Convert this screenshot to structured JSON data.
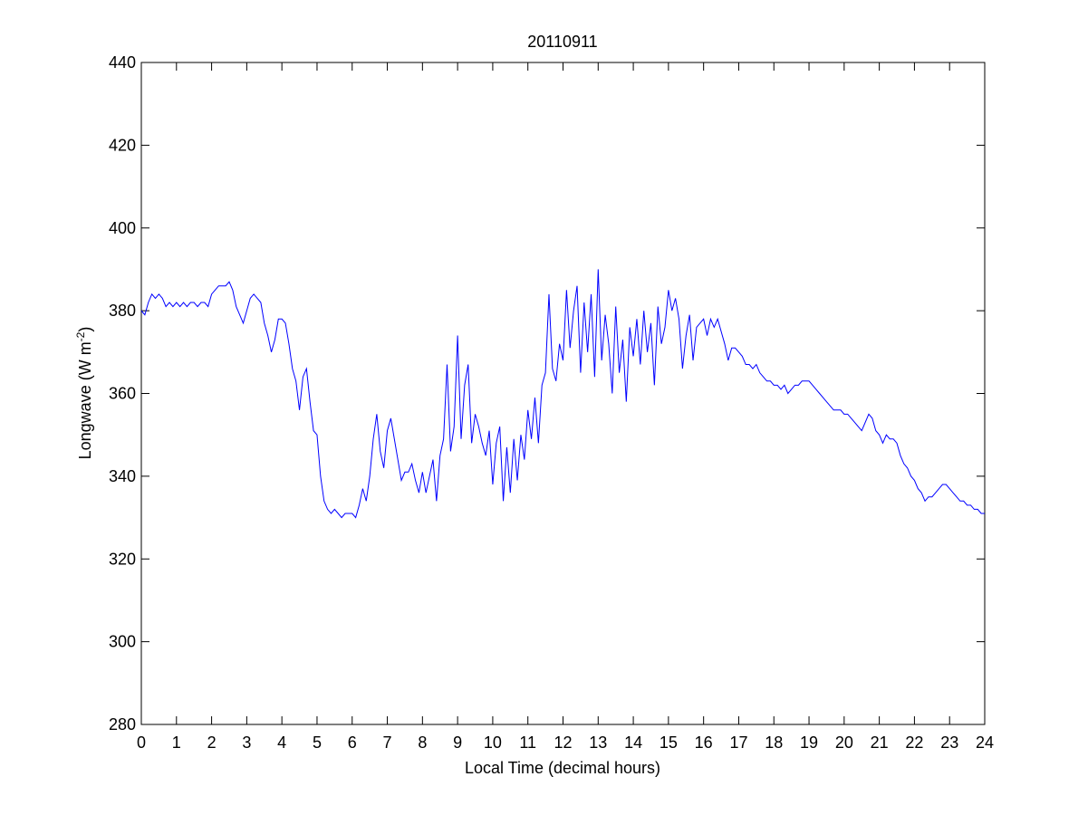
{
  "chart_data": {
    "type": "line",
    "title": "20110911",
    "xlabel": "Local Time (decimal hours)",
    "ylabel": {
      "text": "Longwave (W m",
      "superscript": "-2",
      "suffix": ")"
    },
    "xlim": [
      0,
      24
    ],
    "xticks": [
      0,
      1,
      2,
      3,
      4,
      5,
      6,
      7,
      8,
      9,
      10,
      11,
      12,
      13,
      14,
      15,
      16,
      17,
      18,
      19,
      20,
      21,
      22,
      23,
      24
    ],
    "ylim": [
      280,
      440
    ],
    "yticks": [
      280,
      300,
      320,
      340,
      360,
      380,
      400,
      420,
      440
    ],
    "grid": false,
    "series": [
      {
        "color": "#0000ff",
        "x": [
          0,
          0.1,
          0.2,
          0.3,
          0.4,
          0.5,
          0.6,
          0.7,
          0.8,
          0.9,
          1,
          1.1,
          1.2,
          1.3,
          1.4,
          1.5,
          1.6,
          1.7,
          1.8,
          1.9,
          2,
          2.1,
          2.2,
          2.3,
          2.4,
          2.5,
          2.6,
          2.7,
          2.8,
          2.9,
          3,
          3.1,
          3.2,
          3.3,
          3.4,
          3.5,
          3.6,
          3.7,
          3.8,
          3.9,
          4,
          4.1,
          4.2,
          4.3,
          4.4,
          4.5,
          4.6,
          4.7,
          4.8,
          4.9,
          5,
          5.1,
          5.2,
          5.3,
          5.4,
          5.5,
          5.6,
          5.7,
          5.8,
          5.9,
          6,
          6.1,
          6.2,
          6.3,
          6.4,
          6.5,
          6.6,
          6.7,
          6.8,
          6.9,
          7,
          7.1,
          7.2,
          7.3,
          7.4,
          7.5,
          7.6,
          7.7,
          7.8,
          7.9,
          8,
          8.1,
          8.2,
          8.3,
          8.4,
          8.5,
          8.6,
          8.7,
          8.8,
          8.9,
          9,
          9.1,
          9.2,
          9.3,
          9.4,
          9.5,
          9.6,
          9.7,
          9.8,
          9.9,
          10,
          10.1,
          10.2,
          10.3,
          10.4,
          10.5,
          10.6,
          10.7,
          10.8,
          10.9,
          11,
          11.1,
          11.2,
          11.3,
          11.4,
          11.5,
          11.6,
          11.7,
          11.8,
          11.9,
          12,
          12.1,
          12.2,
          12.3,
          12.4,
          12.5,
          12.6,
          12.7,
          12.8,
          12.9,
          13,
          13.1,
          13.2,
          13.3,
          13.4,
          13.5,
          13.6,
          13.7,
          13.8,
          13.9,
          14,
          14.1,
          14.2,
          14.3,
          14.4,
          14.5,
          14.6,
          14.7,
          14.8,
          14.9,
          15,
          15.1,
          15.2,
          15.3,
          15.4,
          15.5,
          15.6,
          15.7,
          15.8,
          15.9,
          16,
          16.1,
          16.2,
          16.3,
          16.4,
          16.5,
          16.6,
          16.7,
          16.8,
          16.9,
          17,
          17.1,
          17.2,
          17.3,
          17.4,
          17.5,
          17.6,
          17.7,
          17.8,
          17.9,
          18,
          18.1,
          18.2,
          18.3,
          18.4,
          18.5,
          18.6,
          18.7,
          18.8,
          18.9,
          19,
          19.1,
          19.2,
          19.3,
          19.4,
          19.5,
          19.6,
          19.7,
          19.8,
          19.9,
          20,
          20.1,
          20.2,
          20.3,
          20.4,
          20.5,
          20.6,
          20.7,
          20.8,
          20.9,
          21,
          21.1,
          21.2,
          21.3,
          21.4,
          21.5,
          21.6,
          21.7,
          21.8,
          21.9,
          22,
          22.1,
          22.2,
          22.3,
          22.4,
          22.5,
          22.6,
          22.7,
          22.8,
          22.9,
          23,
          23.1,
          23.2,
          23.3,
          23.4,
          23.5,
          23.6,
          23.7,
          23.8,
          23.9,
          24
        ],
        "values": [
          380,
          379,
          382,
          384,
          383,
          384,
          383,
          381,
          382,
          381,
          382,
          381,
          382,
          381,
          382,
          382,
          381,
          382,
          382,
          381,
          384,
          385,
          386,
          386,
          386,
          387,
          385,
          381,
          379,
          377,
          380,
          383,
          384,
          383,
          382,
          377,
          374,
          370,
          373,
          378,
          378,
          377,
          372,
          366,
          363,
          356,
          364,
          366,
          358,
          351,
          350,
          340,
          334,
          332,
          331,
          332,
          331,
          330,
          331,
          331,
          331,
          330,
          333,
          337,
          334,
          340,
          349,
          355,
          346,
          342,
          351,
          354,
          349,
          344,
          339,
          341,
          341,
          343,
          339,
          336,
          341,
          336,
          340,
          344,
          334,
          345,
          349,
          367,
          346,
          352,
          374,
          349,
          362,
          367,
          348,
          355,
          352,
          348,
          345,
          351,
          338,
          348,
          352,
          334,
          347,
          336,
          349,
          339,
          350,
          344,
          356,
          349,
          359,
          348,
          362,
          365,
          384,
          366,
          363,
          372,
          368,
          385,
          371,
          380,
          386,
          365,
          382,
          370,
          384,
          364,
          390,
          368,
          379,
          372,
          360,
          381,
          365,
          373,
          358,
          376,
          369,
          378,
          367,
          380,
          370,
          377,
          362,
          381,
          372,
          376,
          385,
          380,
          383,
          378,
          366,
          374,
          379,
          368,
          376,
          377,
          378,
          374,
          378,
          376,
          378,
          375,
          372,
          368,
          371,
          371,
          370,
          369,
          367,
          367,
          366,
          367,
          365,
          364,
          363,
          363,
          362,
          362,
          361,
          362,
          360,
          361,
          362,
          362,
          363,
          363,
          363,
          362,
          361,
          360,
          359,
          358,
          357,
          356,
          356,
          356,
          355,
          355,
          354,
          353,
          352,
          351,
          353,
          355,
          354,
          351,
          350,
          348,
          350,
          349,
          349,
          348,
          345,
          343,
          342,
          340,
          339,
          337,
          336,
          334,
          335,
          335,
          336,
          337,
          338,
          338,
          337,
          336,
          335,
          334,
          334,
          333,
          333,
          332,
          332,
          331,
          331
        ]
      }
    ]
  }
}
